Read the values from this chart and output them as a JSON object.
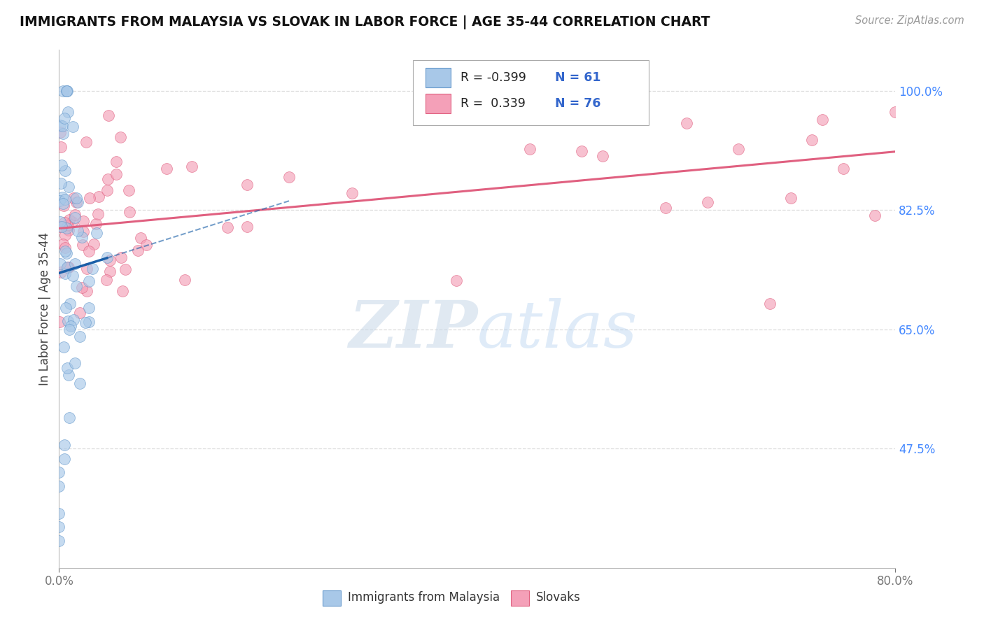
{
  "title": "IMMIGRANTS FROM MALAYSIA VS SLOVAK IN LABOR FORCE | AGE 35-44 CORRELATION CHART",
  "source_text": "Source: ZipAtlas.com",
  "ylabel": "In Labor Force | Age 35-44",
  "xlim": [
    0.0,
    0.8
  ],
  "ylim": [
    0.3,
    1.06
  ],
  "x_tick_labels": [
    "0.0%",
    "80.0%"
  ],
  "y_ticks": [
    0.475,
    0.65,
    0.825,
    1.0
  ],
  "y_tick_labels": [
    "47.5%",
    "65.0%",
    "82.5%",
    "100.0%"
  ],
  "malaysia_color": "#a8c8e8",
  "malaysia_edge": "#6699cc",
  "slovak_color": "#f4a0b8",
  "slovak_edge": "#e06080",
  "malaysia_line_color": "#1a5fa8",
  "slovak_line_color": "#e06080",
  "legend_R_malaysia": "-0.399",
  "legend_N_malaysia": "61",
  "legend_R_slovak": "0.339",
  "legend_N_slovak": "76",
  "watermark_zip": "ZIP",
  "watermark_atlas": "atlas",
  "background_color": "#ffffff",
  "grid_color": "#cccccc",
  "ytick_color": "#4488ff",
  "legend_value_color": "#3366cc"
}
